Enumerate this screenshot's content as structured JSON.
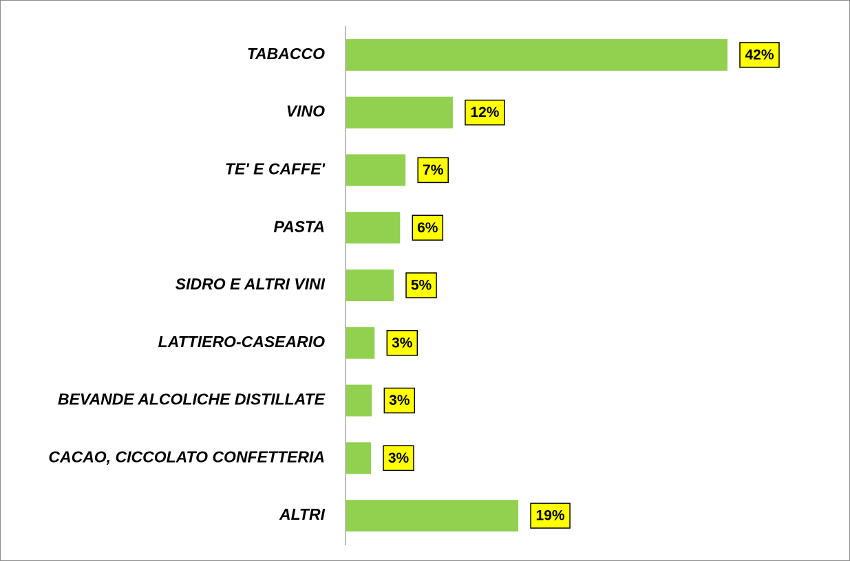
{
  "chart_data": {
    "type": "bar",
    "orientation": "horizontal",
    "categories": [
      "TABACCO",
      "VINO",
      "TE' E CAFFE'",
      "PASTA",
      "SIDRO E ALTRI VINI",
      "LATTIERO-CASEARIO",
      "BEVANDE ALCOLICHE DISTILLATE",
      "CACAO, CICCOLATO CONFETTERIA",
      "ALTRI"
    ],
    "values": [
      42,
      11.8,
      6.6,
      6.0,
      5.3,
      3.2,
      2.9,
      2.8,
      19
    ],
    "value_labels": [
      "42%",
      "12%",
      "7%",
      "6%",
      "5%",
      "3%",
      "3%",
      "3%",
      "19%"
    ],
    "color": "#92d050",
    "label_box_color": "#ffff00"
  }
}
